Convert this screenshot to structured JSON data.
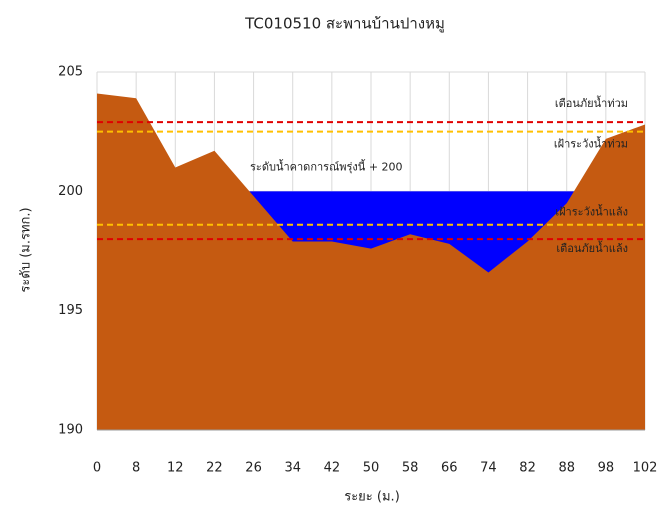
{
  "chart_data": {
    "type": "area",
    "title": "TC010510 สะพานบ้านปางหมู",
    "x_label": "ระยะ (ม.)",
    "y_label": "ระดับ (ม.รทก.)",
    "categories": [
      "0",
      "8",
      "12",
      "22",
      "26",
      "34",
      "42",
      "50",
      "58",
      "66",
      "74",
      "82",
      "88",
      "98",
      "102"
    ],
    "values": [
      204.1,
      203.9,
      201.0,
      201.7,
      199.8,
      197.9,
      197.9,
      197.6,
      198.2,
      197.8,
      196.6,
      197.9,
      199.5,
      202.2,
      202.8
    ],
    "color": "#c55a11",
    "water": {
      "label": "ระดับน้ำคาดการณ์พรุ่งนี้ + 200",
      "value": 200,
      "color": "#0000ff"
    },
    "thresholds": [
      {
        "label": "เตือนภัยน้ำท่วม",
        "value": 202.9,
        "color": "#e00000"
      },
      {
        "label": "เฝ้าระวังน้ำท่วม",
        "value": 202.5,
        "color": "#ffc000"
      },
      {
        "label": "เฝ้าระวังน้ำแล้ง",
        "value": 198.6,
        "color": "#ffc000"
      },
      {
        "label": "เตือนภัยน้ำแล้ง",
        "value": 198.0,
        "color": "#e00000"
      }
    ],
    "ylim": [
      190,
      205
    ],
    "yticks": [
      190,
      195,
      200,
      205
    ],
    "grid": true
  }
}
